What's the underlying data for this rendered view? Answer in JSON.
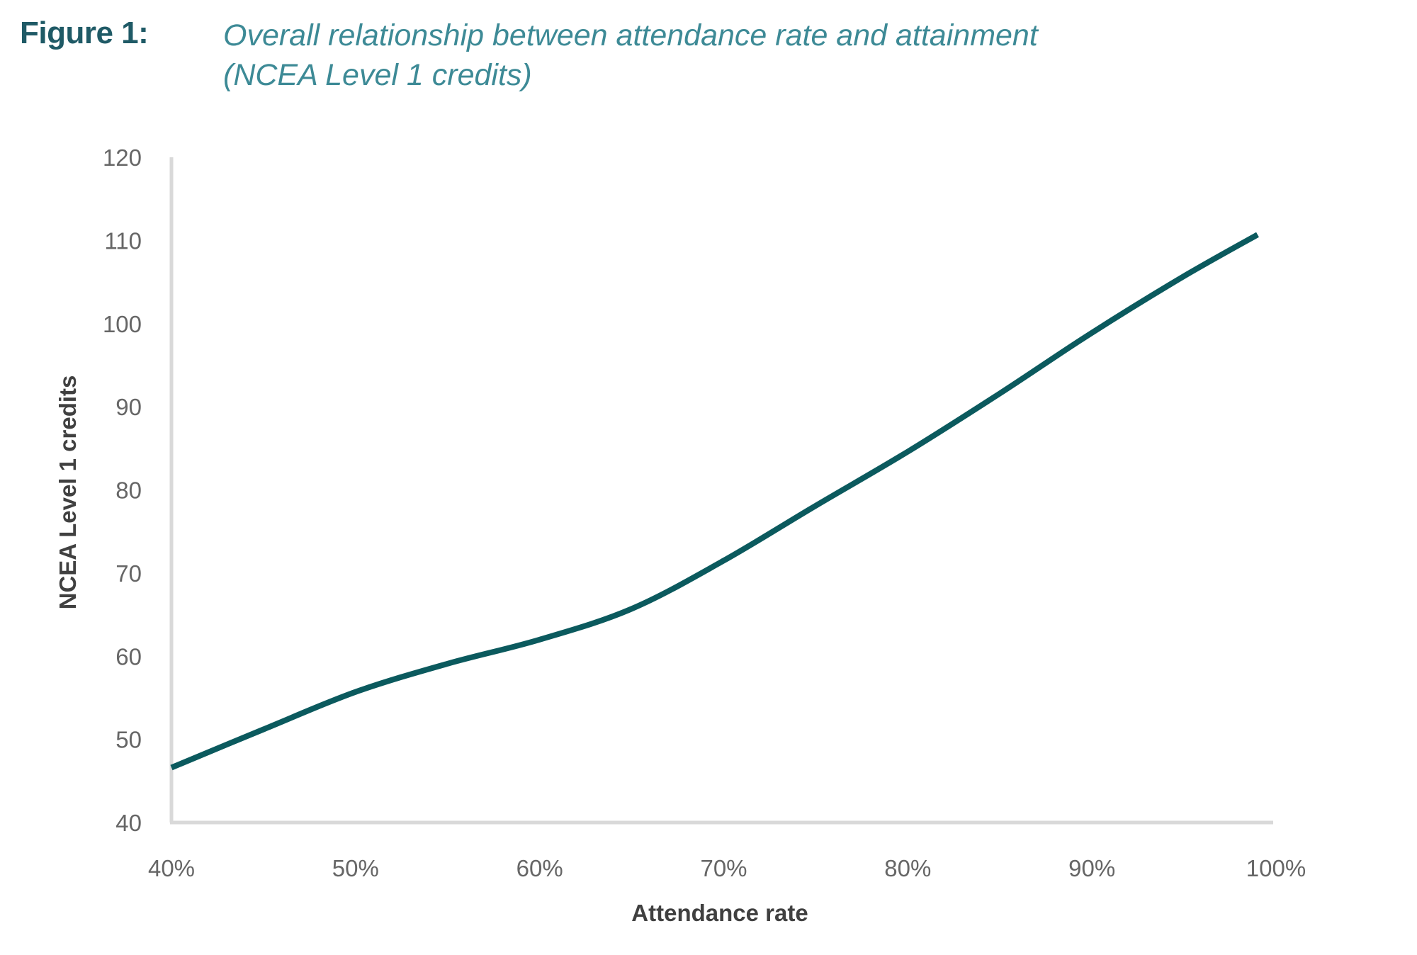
{
  "figure": {
    "label": "Figure 1:",
    "title_line1": "Overall relationship between attendance rate and attainment",
    "title_line2": "(NCEA Level 1 credits)"
  },
  "colors": {
    "line": "#0b5a5e",
    "axis": "#d9d9d9",
    "label_dark": "#1f5a66",
    "title_teal": "#3d8a96"
  },
  "chart_data": {
    "type": "line",
    "title": "Overall relationship between attendance rate and attainment (NCEA Level 1 credits)",
    "xlabel": "Attendance rate",
    "ylabel": "NCEA Level 1 credits",
    "xlim": [
      40,
      100
    ],
    "ylim": [
      40,
      120
    ],
    "x_ticks": [
      40,
      50,
      60,
      70,
      80,
      90,
      100
    ],
    "x_tick_labels": [
      "40%",
      "50%",
      "60%",
      "70%",
      "80%",
      "90%",
      "100%"
    ],
    "y_ticks": [
      40,
      50,
      60,
      70,
      80,
      90,
      100,
      110,
      120
    ],
    "y_tick_labels": [
      "40",
      "50",
      "60",
      "70",
      "80",
      "90",
      "100",
      "110",
      "120"
    ],
    "grid": false,
    "legend": "none",
    "series": [
      {
        "name": "NCEA Level 1 credits",
        "x": [
          40,
          45,
          50,
          55,
          60,
          65,
          70,
          75,
          80,
          85,
          90,
          95,
          99
        ],
        "y": [
          46.6,
          51.2,
          55.7,
          59.1,
          62.0,
          65.7,
          71.5,
          78.1,
          84.6,
          91.6,
          98.9,
          105.7,
          110.7
        ]
      }
    ]
  }
}
